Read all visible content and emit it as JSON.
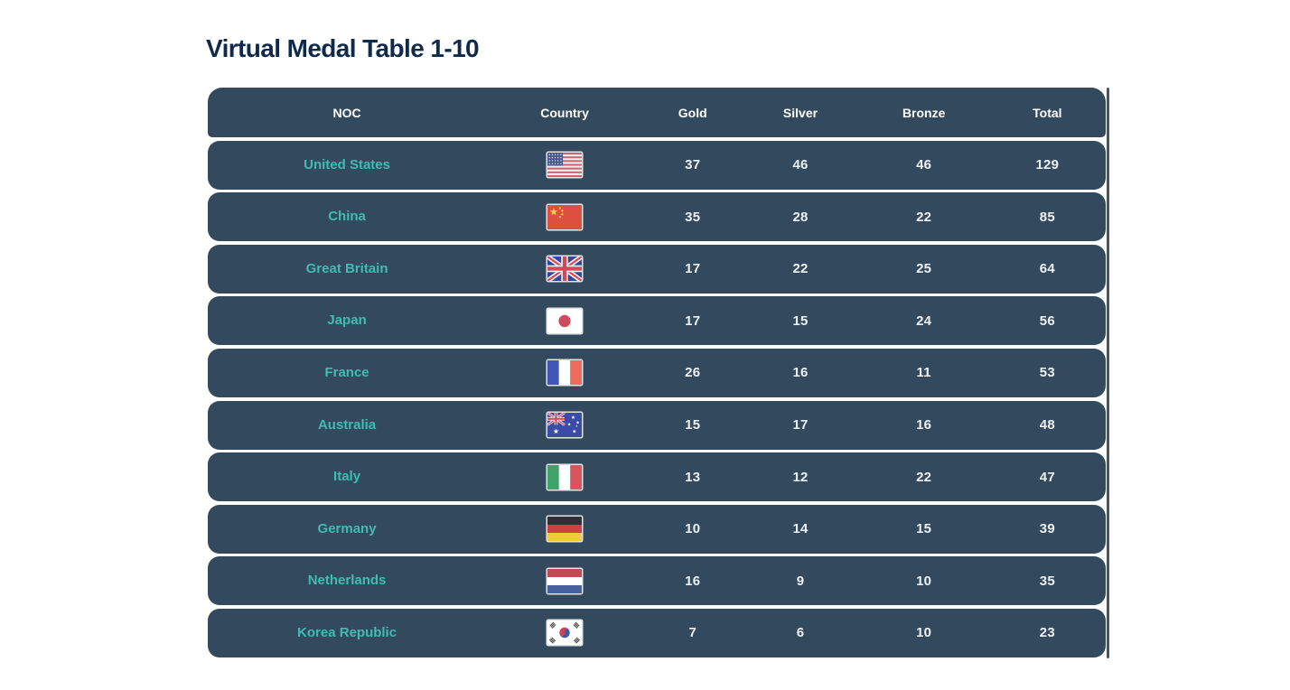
{
  "page": {
    "title": "Virtual Medal Table 1-10"
  },
  "colors": {
    "title_navy": "#102a4c",
    "row_background": "#33495d",
    "accent_teal": "#3fbdb3",
    "number_text": "#eef2f6",
    "page_background": "#ffffff",
    "scrollbar": "#41566b"
  },
  "table": {
    "columns": [
      "NOC",
      "Country",
      "Gold",
      "Silver",
      "Bronze",
      "Total"
    ],
    "rows": [
      {
        "noc": "United States",
        "flag": "us",
        "flag_icon": "united-states-flag-icon",
        "gold": "37",
        "silver": "46",
        "bronze": "46",
        "total": "129"
      },
      {
        "noc": "China",
        "flag": "cn",
        "flag_icon": "china-flag-icon",
        "gold": "35",
        "silver": "28",
        "bronze": "22",
        "total": "85"
      },
      {
        "noc": "Great Britain",
        "flag": "gb",
        "flag_icon": "great-britain-flag-icon",
        "gold": "17",
        "silver": "22",
        "bronze": "25",
        "total": "64"
      },
      {
        "noc": "Japan",
        "flag": "jp",
        "flag_icon": "japan-flag-icon",
        "gold": "17",
        "silver": "15",
        "bronze": "24",
        "total": "56"
      },
      {
        "noc": "France",
        "flag": "fr",
        "flag_icon": "france-flag-icon",
        "gold": "26",
        "silver": "16",
        "bronze": "11",
        "total": "53"
      },
      {
        "noc": "Australia",
        "flag": "au",
        "flag_icon": "australia-flag-icon",
        "gold": "15",
        "silver": "17",
        "bronze": "16",
        "total": "48"
      },
      {
        "noc": "Italy",
        "flag": "it",
        "flag_icon": "italy-flag-icon",
        "gold": "13",
        "silver": "12",
        "bronze": "22",
        "total": "47"
      },
      {
        "noc": "Germany",
        "flag": "de",
        "flag_icon": "germany-flag-icon",
        "gold": "10",
        "silver": "14",
        "bronze": "15",
        "total": "39"
      },
      {
        "noc": "Netherlands",
        "flag": "nl",
        "flag_icon": "netherlands-flag-icon",
        "gold": "16",
        "silver": "9",
        "bronze": "10",
        "total": "35"
      },
      {
        "noc": "Korea Republic",
        "flag": "kr",
        "flag_icon": "korea-republic-flag-icon",
        "gold": "7",
        "silver": "6",
        "bronze": "10",
        "total": "23"
      }
    ]
  }
}
